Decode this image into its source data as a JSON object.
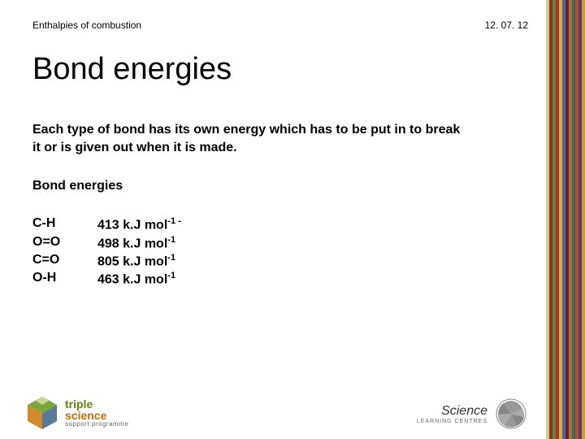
{
  "header": {
    "topic": "Enthalpies of combustion",
    "date": "12. 07. 12"
  },
  "title": "Bond energies",
  "intro": "Each type of bond has its own energy which has to be put in to break it or is given out when it is made.",
  "subhead": "Bond energies",
  "bonds": [
    {
      "label": "C-H",
      "value": "413 k.J mol",
      "exp": "-1 -"
    },
    {
      "label": "O=O",
      "value": "498 k.J mol",
      "exp": "-1"
    },
    {
      "label": "C=O",
      "value": "805 k.J mol",
      "exp": "-1"
    },
    {
      "label": "O-H",
      "value": "463 k.J mol",
      "exp": "-1"
    }
  ],
  "stripes": [
    "#d8c88f",
    "#8a3a1e",
    "#6e7f3a",
    "#a63a2a",
    "#d8a84a",
    "#4a6a8a",
    "#6a1a3a",
    "#9a7a3a",
    "#3a6a5a",
    "#b84a2a",
    "#5a3a6a",
    "#c89a3a"
  ],
  "logos": {
    "left": {
      "line1": "triple",
      "line2": "science",
      "line3": "support programme"
    },
    "right": {
      "line1": "Science",
      "line2": "LEARNING CENTRES"
    }
  }
}
